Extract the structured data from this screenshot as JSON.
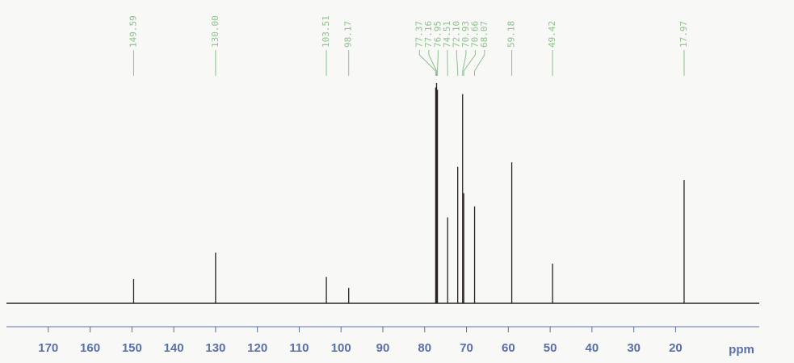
{
  "chart_data": {
    "type": "spectrum",
    "x_label": "ppm",
    "xlim": [
      180,
      0
    ],
    "xticks": [
      170,
      160,
      150,
      140,
      130,
      120,
      110,
      100,
      90,
      80,
      70,
      60,
      50,
      40,
      30,
      20
    ],
    "ylim": [
      0,
      100
    ],
    "x": [
      149.59,
      130.0,
      103.51,
      98.17,
      77.37,
      77.16,
      76.95,
      74.51,
      72.1,
      70.93,
      70.66,
      68.07,
      59.18,
      49.42,
      17.97
    ],
    "x_labels": [
      "149.59",
      "130.00",
      "103.51",
      "98.17",
      "77.37",
      "77.16",
      "76.95",
      "74.51",
      "72.10",
      "70.93",
      "70.66",
      "68.07",
      "59.18",
      "49.42",
      "17.97"
    ],
    "values": [
      11,
      23,
      12,
      7,
      98,
      100,
      97,
      39,
      62,
      95,
      50,
      44,
      64,
      18,
      56
    ],
    "color": "#2a2222",
    "label_color": "#8cc08c",
    "axis_color": "#5a6fa8"
  }
}
